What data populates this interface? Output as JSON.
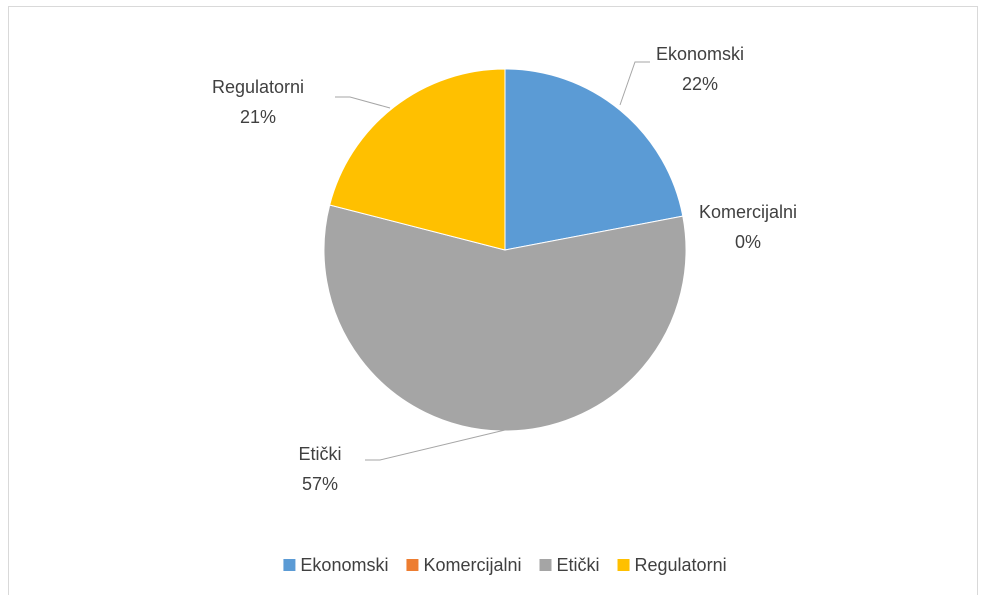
{
  "chart_data": {
    "type": "pie",
    "categories": [
      "Ekonomski",
      "Komercijalni",
      "Etički",
      "Regulatorni"
    ],
    "values": [
      22,
      0,
      57,
      21
    ],
    "value_labels": [
      "22%",
      "0%",
      "57%",
      "21%"
    ],
    "colors": [
      "#5b9bd5",
      "#ed7d31",
      "#a5a5a5",
      "#ffc000"
    ],
    "legend": "bottom"
  }
}
